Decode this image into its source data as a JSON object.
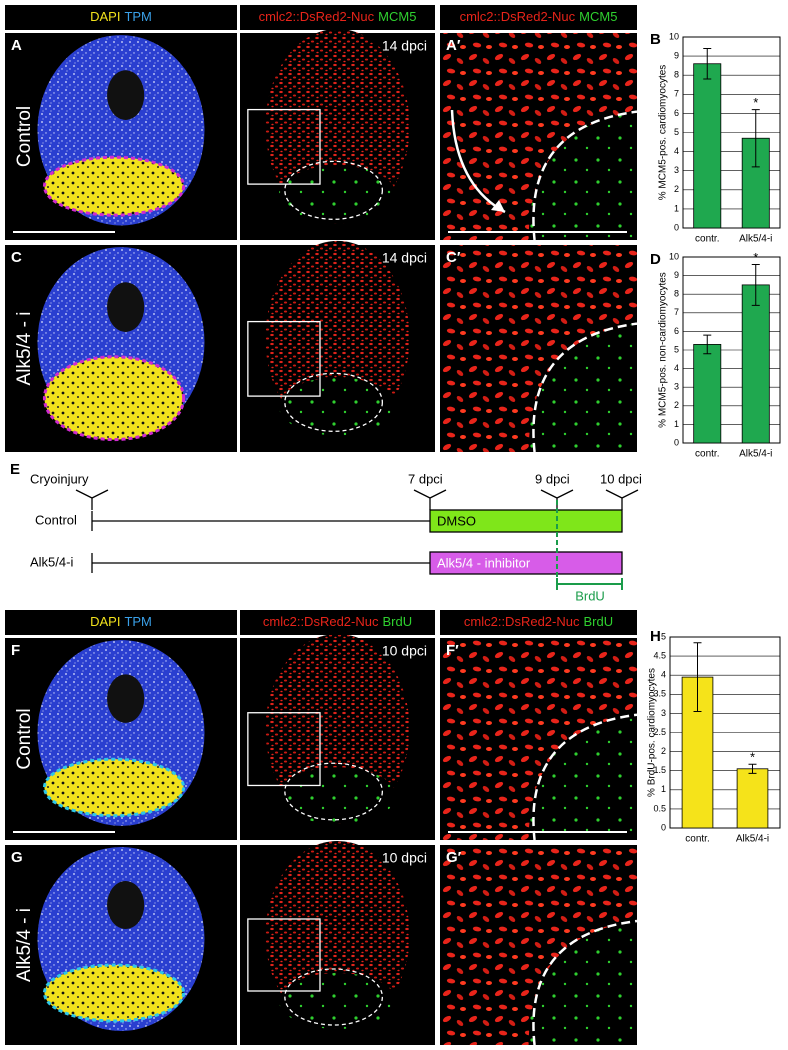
{
  "chart_data": [
    {
      "type": "bar",
      "label": "B",
      "y_label": "% MCM5-pos. cardiomyocytes",
      "categories": [
        "contr.",
        "Alk5/4-i"
      ],
      "values": [
        8.6,
        4.7
      ],
      "errors": [
        0.8,
        1.5
      ],
      "color": "#1fa84f",
      "ylim": [
        0,
        10
      ],
      "yticks": [
        0,
        1,
        2,
        3,
        4,
        5,
        6,
        7,
        8,
        9,
        10
      ],
      "grid": true,
      "annotation": "*"
    },
    {
      "type": "bar",
      "label": "D",
      "y_label": "% MCM5-pos. non-cardiomyocytes",
      "categories": [
        "contr.",
        "Alk5/4-i"
      ],
      "values": [
        5.3,
        8.5
      ],
      "errors": [
        0.5,
        1.1
      ],
      "color": "#1fa84f",
      "ylim": [
        0,
        10
      ],
      "yticks": [
        0,
        1,
        2,
        3,
        4,
        5,
        6,
        7,
        8,
        9,
        10
      ],
      "grid": true,
      "annotation": "*"
    },
    {
      "type": "bar",
      "label": "H",
      "y_label": "% BrdU-pos. cardiomyocytes",
      "categories": [
        "contr.",
        "Alk5/4-i"
      ],
      "values": [
        3.95,
        1.55
      ],
      "errors": [
        0.9,
        0.12
      ],
      "color": "#f5e31a",
      "ylim": [
        0,
        5
      ],
      "yticks": [
        0,
        0.5,
        1,
        1.5,
        2,
        2.5,
        3,
        3.5,
        4,
        4.5,
        5
      ],
      "grid": true,
      "annotation": "*"
    }
  ],
  "header_rows": [
    [
      {
        "stain": "DAPI",
        "counter": "TPM"
      },
      {
        "stain": "cmlc2::DsRed2-Nuc",
        "counter": "MCM5"
      },
      {
        "stain": "cmlc2::DsRed2-Nuc",
        "counter": "MCM5"
      }
    ],
    [
      {
        "stain": "DAPI",
        "counter": "TPM"
      },
      {
        "stain": "cmlc2::DsRed2-Nuc",
        "counter": "BrdU"
      },
      {
        "stain": "cmlc2::DsRed2-Nuc",
        "counter": "BrdU"
      }
    ]
  ],
  "image_rows": [
    {
      "condition": "Control",
      "overview_letter": "A",
      "time": "14 dpci",
      "zoom_letter": "A′"
    },
    {
      "condition": "Alk5/4 - i",
      "overview_letter": "C",
      "time": "14 dpci",
      "zoom_letter": "C′"
    },
    {
      "condition": "Control",
      "overview_letter": "F",
      "time": "10 dpci",
      "zoom_letter": "F′"
    },
    {
      "condition": "Alk5/4 - i",
      "overview_letter": "G",
      "time": "10 dpci",
      "zoom_letter": "G′"
    }
  ],
  "timeline": {
    "letter": "E",
    "events": [
      "Cryoinjury",
      "7 dpci",
      "9 dpci",
      "10 dpci"
    ],
    "groups": [
      {
        "name": "Control",
        "treatment": "DMSO"
      },
      {
        "name": "Alk5/4-i",
        "treatment": "Alk5/4 - inhibitor"
      }
    ],
    "labeling": "BrdU"
  }
}
